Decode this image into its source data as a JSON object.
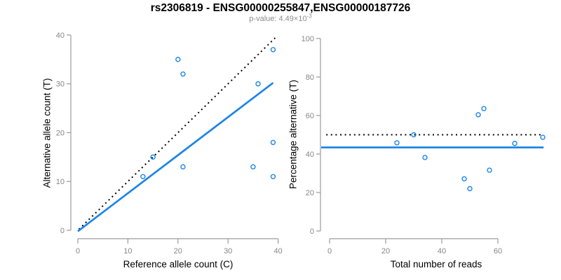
{
  "header": {
    "title": "rs2306819 - ENSG00000255847,ENSG00000187726",
    "subtitle_base": "p-value: 4.49×10",
    "subtitle_exponent": "-3"
  },
  "colors": {
    "point": "#1e86e5",
    "regression": "#1e86e5",
    "reference": "#000000",
    "axis": "#9b9b9b",
    "tick_label": "#878787",
    "title": "#000000",
    "subtitle": "#8c8c8c"
  },
  "chart_data": [
    {
      "type": "scatter",
      "title": "rs2306819 - ENSG00000255847,ENSG00000187726",
      "subtitle": "p-value: 4.49×10-3",
      "xlabel": "Reference allele count (C)",
      "ylabel": "Alternative allele count (T)",
      "xlim": [
        0,
        40
      ],
      "ylim": [
        0,
        40
      ],
      "xticks": [
        0,
        10,
        20,
        30,
        40
      ],
      "yticks": [
        0,
        10,
        20,
        30,
        40
      ],
      "grid": false,
      "legend": "none",
      "points": [
        [
          20,
          35
        ],
        [
          21,
          32
        ],
        [
          39,
          37
        ],
        [
          36,
          30
        ],
        [
          39,
          18
        ],
        [
          15,
          15
        ],
        [
          21,
          13
        ],
        [
          35,
          13
        ],
        [
          13,
          11
        ],
        [
          39,
          11
        ]
      ],
      "lines": [
        {
          "name": "identity-line",
          "style": "dotted",
          "color": "#000000",
          "from": [
            0.2,
            0.2
          ],
          "to": [
            39.4,
            39.4
          ]
        },
        {
          "name": "regression-line",
          "style": "solid",
          "color": "#1e86e5",
          "from": [
            0,
            -0.2
          ],
          "to": [
            39,
            30.2
          ]
        }
      ]
    },
    {
      "type": "scatter",
      "xlabel": "Total number of reads",
      "ylabel": "Percentage alternative (T)",
      "xlim": [
        0,
        60
      ],
      "ylim": [
        0,
        100
      ],
      "xticks": [
        0,
        20,
        40,
        60
      ],
      "yticks": [
        0,
        20,
        40,
        60,
        80,
        100
      ],
      "grid": false,
      "legend": "none",
      "points": [
        [
          24,
          45.8
        ],
        [
          30,
          50
        ],
        [
          34,
          38.2
        ],
        [
          53,
          60.4
        ],
        [
          55,
          63.6
        ],
        [
          48,
          27.1
        ],
        [
          50,
          22
        ],
        [
          57,
          31.6
        ],
        [
          66,
          45.5
        ],
        [
          76,
          48.7
        ]
      ],
      "lines": [
        {
          "name": "fifty-percent-line",
          "style": "dotted",
          "color": "#000000",
          "from": [
            -1.2,
            50
          ],
          "to": [
            76.3,
            50
          ]
        },
        {
          "name": "mean-percentage-line",
          "style": "solid",
          "color": "#1e86e5",
          "from": [
            -3,
            43.4
          ],
          "to": [
            76.3,
            43.4
          ]
        }
      ]
    }
  ]
}
